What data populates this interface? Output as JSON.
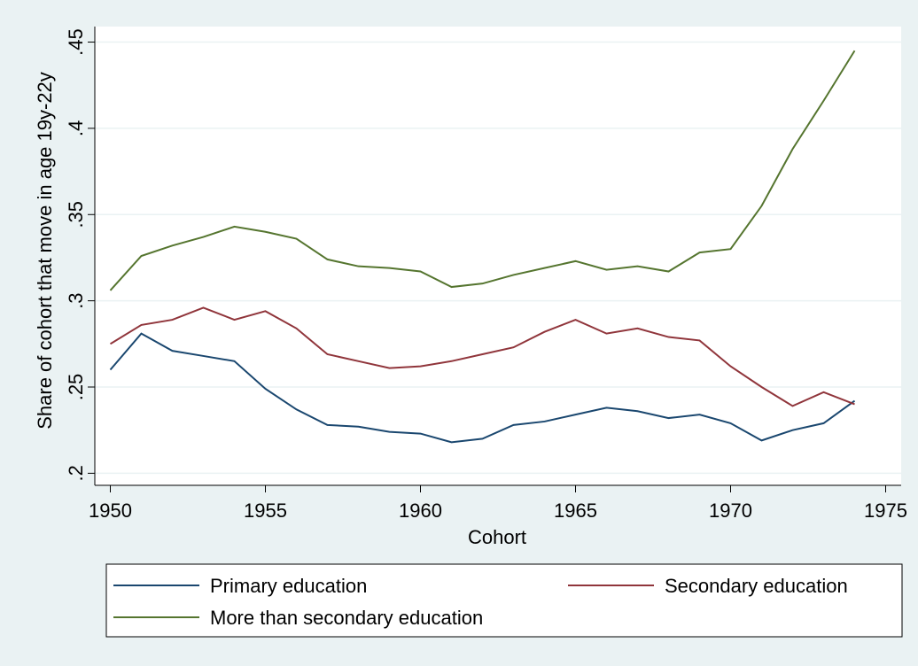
{
  "chart_data": {
    "type": "line",
    "x_label": "Cohort",
    "y_label": "Share of cohort that move in age 19y-22y",
    "x": [
      1950,
      1951,
      1952,
      1953,
      1954,
      1955,
      1956,
      1957,
      1958,
      1959,
      1960,
      1961,
      1962,
      1963,
      1964,
      1965,
      1966,
      1967,
      1968,
      1969,
      1970,
      1971,
      1972,
      1973,
      1974
    ],
    "series": [
      {
        "name": "Primary education",
        "color": "#1a476f",
        "values": [
          0.26,
          0.281,
          0.271,
          0.268,
          0.265,
          0.249,
          0.237,
          0.228,
          0.227,
          0.224,
          0.223,
          0.218,
          0.22,
          0.228,
          0.23,
          0.234,
          0.238,
          0.236,
          0.232,
          0.234,
          0.229,
          0.219,
          0.225,
          0.229,
          0.242
        ]
      },
      {
        "name": "Secondary education",
        "color": "#90353b",
        "values": [
          0.275,
          0.286,
          0.289,
          0.296,
          0.289,
          0.294,
          0.284,
          0.269,
          0.265,
          0.261,
          0.262,
          0.265,
          0.269,
          0.273,
          0.282,
          0.289,
          0.281,
          0.284,
          0.279,
          0.277,
          0.262,
          0.25,
          0.239,
          0.247,
          0.24
        ]
      },
      {
        "name": "More than secondary education",
        "color": "#55752f",
        "values": [
          0.306,
          0.326,
          0.332,
          0.337,
          0.343,
          0.34,
          0.336,
          0.324,
          0.32,
          0.319,
          0.317,
          0.308,
          0.31,
          0.315,
          0.319,
          0.323,
          0.318,
          0.32,
          0.317,
          0.328,
          0.33,
          0.355,
          0.388,
          0.416,
          0.445
        ]
      }
    ],
    "xlim": [
      1949.5,
      1975.5
    ],
    "xticks": [
      1950,
      1955,
      1960,
      1965,
      1970,
      1975
    ],
    "ylim": [
      0.193,
      0.459
    ],
    "yticks": [
      {
        "value": 0.2,
        "label": ".2"
      },
      {
        "value": 0.25,
        "label": ".25"
      },
      {
        "value": 0.3,
        "label": ".3"
      },
      {
        "value": 0.35,
        "label": ".35"
      },
      {
        "value": 0.4,
        "label": ".4"
      },
      {
        "value": 0.45,
        "label": ".45"
      }
    ],
    "grid": true,
    "legend": "bottom"
  }
}
